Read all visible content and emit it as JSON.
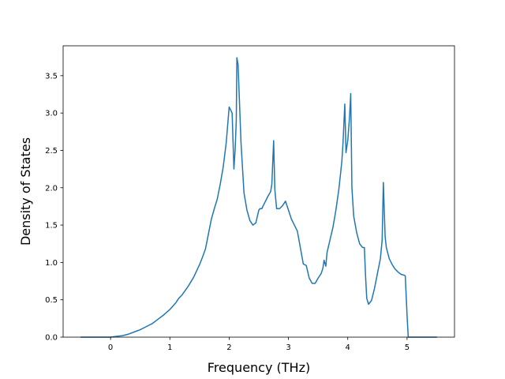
{
  "chart_data": {
    "type": "line",
    "title": "",
    "xlabel": "Frequency (THz)",
    "ylabel": "Density of States",
    "xlim": [
      -0.8,
      5.8
    ],
    "ylim": [
      0.0,
      3.9
    ],
    "xticks": [
      0,
      1,
      2,
      3,
      4,
      5
    ],
    "yticks": [
      0.0,
      0.5,
      1.0,
      1.5,
      2.0,
      2.5,
      3.0,
      3.5
    ],
    "grid": false,
    "legend": "none",
    "color": "#1f77b4",
    "series": [
      {
        "x": [
          -0.5,
          0.0,
          0.1,
          0.2,
          0.3,
          0.4,
          0.5,
          0.6,
          0.7,
          0.8,
          0.9,
          1.0,
          1.1,
          1.15,
          1.2,
          1.3,
          1.4,
          1.5,
          1.55,
          1.6,
          1.65,
          1.7,
          1.75,
          1.8,
          1.85,
          1.9,
          1.95,
          2.0,
          2.02,
          2.05,
          2.08,
          2.1,
          2.12,
          2.13,
          2.15,
          2.2,
          2.25,
          2.3,
          2.35,
          2.4,
          2.45,
          2.5,
          2.52,
          2.55,
          2.6,
          2.65,
          2.7,
          2.72,
          2.75,
          2.77,
          2.8,
          2.85,
          2.9,
          2.95,
          3.0,
          3.05,
          3.1,
          3.15,
          3.2,
          3.25,
          3.3,
          3.35,
          3.4,
          3.45,
          3.5,
          3.55,
          3.58,
          3.6,
          3.63,
          3.65,
          3.7,
          3.75,
          3.8,
          3.85,
          3.9,
          3.92,
          3.95,
          3.97,
          4.0,
          4.03,
          4.05,
          4.07,
          4.1,
          4.15,
          4.2,
          4.25,
          4.28,
          4.3,
          4.32,
          4.35,
          4.4,
          4.45,
          4.5,
          4.55,
          4.58,
          4.6,
          4.63,
          4.65,
          4.7,
          4.75,
          4.8,
          4.85,
          4.9,
          4.95,
          4.97,
          5.0,
          5.02,
          5.1,
          5.5
        ],
        "y": [
          0.0,
          0.0,
          0.01,
          0.02,
          0.04,
          0.07,
          0.1,
          0.14,
          0.18,
          0.24,
          0.3,
          0.37,
          0.46,
          0.52,
          0.56,
          0.67,
          0.8,
          0.97,
          1.07,
          1.18,
          1.38,
          1.58,
          1.72,
          1.85,
          2.05,
          2.28,
          2.6,
          3.08,
          3.05,
          3.0,
          2.25,
          2.5,
          2.9,
          3.74,
          3.65,
          2.6,
          1.93,
          1.7,
          1.56,
          1.5,
          1.53,
          1.7,
          1.72,
          1.72,
          1.8,
          1.88,
          1.95,
          2.05,
          2.63,
          1.98,
          1.72,
          1.72,
          1.76,
          1.82,
          1.7,
          1.58,
          1.5,
          1.42,
          1.2,
          0.98,
          0.96,
          0.79,
          0.72,
          0.72,
          0.79,
          0.85,
          0.92,
          1.03,
          0.95,
          1.13,
          1.3,
          1.47,
          1.7,
          1.98,
          2.35,
          2.6,
          3.12,
          2.47,
          2.63,
          2.95,
          3.26,
          2.0,
          1.62,
          1.4,
          1.25,
          1.2,
          1.2,
          0.82,
          0.52,
          0.44,
          0.49,
          0.65,
          0.85,
          1.05,
          1.3,
          2.07,
          1.35,
          1.2,
          1.05,
          0.97,
          0.91,
          0.87,
          0.84,
          0.83,
          0.82,
          0.29,
          0.0,
          0.0,
          0.0
        ]
      }
    ]
  }
}
